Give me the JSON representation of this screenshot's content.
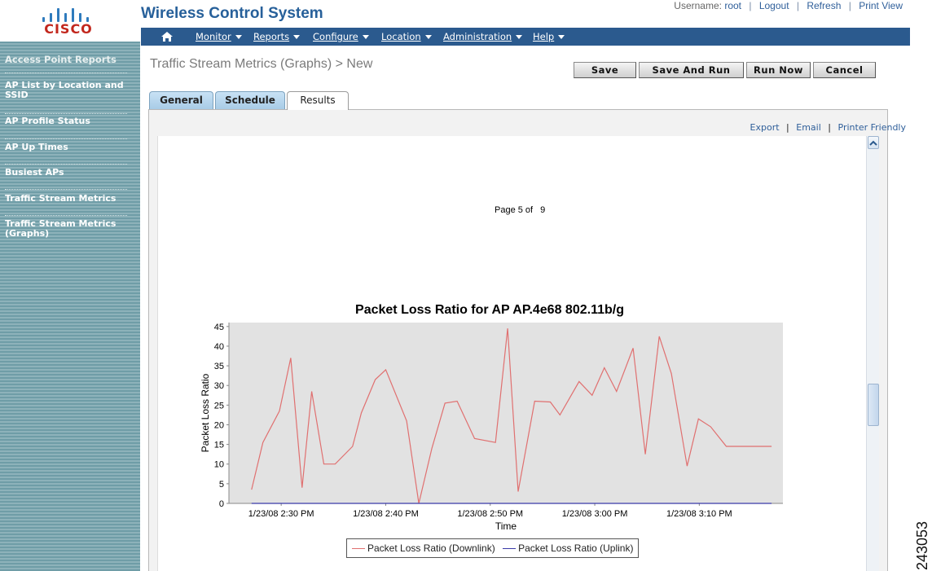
{
  "header": {
    "logo_text": "CISCO",
    "app_title": "Wireless Control System",
    "username_label": "Username:",
    "username": "root",
    "links": [
      "Logout",
      "Refresh",
      "Print View"
    ]
  },
  "nav": {
    "home_icon": "home-icon",
    "items": [
      "Monitor",
      "Reports",
      "Configure",
      "Location",
      "Administration",
      "Help"
    ]
  },
  "sidebar": {
    "heading": "Access Point Reports",
    "items": [
      "AP List by Location and SSID",
      "AP Profile Status",
      "AP Up Times",
      "Busiest APs",
      "Traffic Stream Metrics",
      "Traffic Stream Metrics (Graphs)"
    ]
  },
  "main": {
    "title": "Traffic Stream Metrics (Graphs) > New",
    "buttons": [
      "Save",
      "Save And Run",
      "Run Now",
      "Cancel"
    ],
    "tabs": [
      "General",
      "Schedule",
      "Results"
    ],
    "active_tab": "Results",
    "result_links": [
      "Export",
      "Email",
      "Printer Friendly"
    ],
    "page_label": "Page 5 of",
    "page_total": "9"
  },
  "figure_id": "243053",
  "colors": {
    "downlink": "#e07070",
    "uplink": "#3a3aa8",
    "nav_bg": "#2b5a8e",
    "plot_bg": "#e2e2e2"
  },
  "chart_data": {
    "type": "line",
    "title": "Packet Loss Ratio for AP AP.4e68 802.11b/g",
    "xlabel": "Time",
    "ylabel": "Packet Loss Ratio",
    "ylim": [
      0,
      46
    ],
    "yticks": [
      0,
      5,
      10,
      15,
      20,
      25,
      30,
      35,
      40,
      45
    ],
    "xlim": [
      "1/23/08 2:25 PM",
      "1/23/08 3:18 PM"
    ],
    "xticks": [
      "1/23/08 2:30 PM",
      "1/23/08 2:40 PM",
      "1/23/08 2:50 PM",
      "1/23/08 3:00 PM",
      "1/23/08 3:10 PM"
    ],
    "grid": false,
    "legend": "bottom",
    "series": [
      {
        "name": "Packet Loss Ratio (Downlink)",
        "x": [
          "2:27:10",
          "2:28:15",
          "2:29:50",
          "2:30:55",
          "2:32:00",
          "2:32:55",
          "2:34:05",
          "2:35:10",
          "2:36:50",
          "2:37:40",
          "2:39:00",
          "2:40:00",
          "2:42:00",
          "2:43:10",
          "2:44:25",
          "2:45:40",
          "2:46:50",
          "2:48:30",
          "2:50:30",
          "2:51:40",
          "2:52:40",
          "2:54:15",
          "2:55:45",
          "2:56:40",
          "2:58:30",
          "2:59:45",
          "3:00:55",
          "3:02:05",
          "3:03:40",
          "3:04:50",
          "3:06:10",
          "3:07:20",
          "3:08:50",
          "3:09:55",
          "3:11:05",
          "3:12:35",
          "3:13:55",
          "3:15:05",
          "3:16:55"
        ],
        "values": [
          3.5,
          15.5,
          23.5,
          37,
          4,
          28.5,
          10,
          10,
          14.5,
          23,
          31.5,
          34,
          21,
          0,
          14,
          25.5,
          26,
          16.5,
          15.5,
          44.5,
          3,
          26,
          25.8,
          22.5,
          31,
          27.5,
          34.5,
          28.5,
          39.5,
          12.5,
          42.5,
          33,
          9.5,
          21.5,
          19.5,
          14.5,
          14.5,
          14.5,
          14.5
        ]
      },
      {
        "name": "Packet Loss Ratio (Uplink)",
        "x": [
          "2:27:10",
          "3:16:55"
        ],
        "values": [
          0,
          0
        ]
      }
    ]
  }
}
